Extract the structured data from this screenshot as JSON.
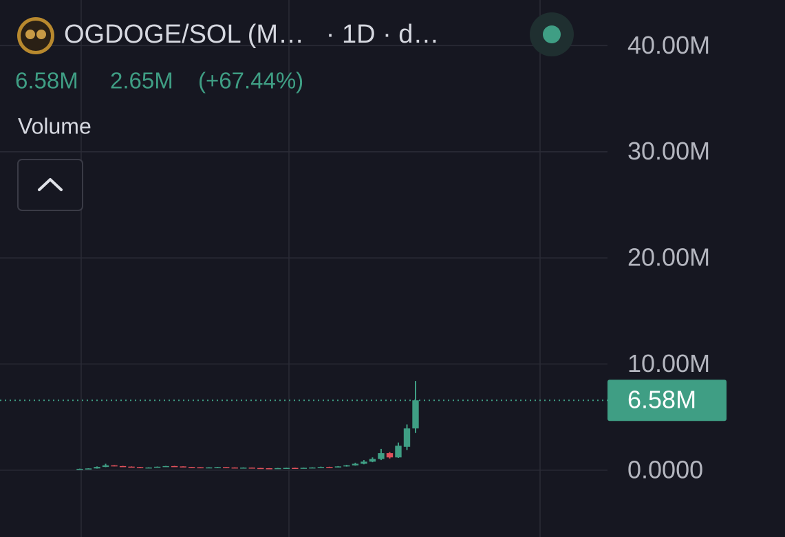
{
  "chart_data": {
    "type": "candlestick",
    "title": "OGDOGE/SOL (M…   · 1D · d…",
    "indicator": "Volume",
    "last_price": {
      "value": 6.58,
      "label": "6.58M"
    },
    "change": {
      "value": 2.65,
      "label": "2.65M"
    },
    "change_pct": {
      "value": 67.44,
      "label": "(+67.44%)"
    },
    "open": [
      0.08,
      0.12,
      0.16,
      0.3,
      0.45,
      0.38,
      0.33,
      0.28,
      0.22,
      0.25,
      0.32,
      0.38,
      0.35,
      0.3,
      0.27,
      0.24,
      0.26,
      0.28,
      0.25,
      0.22,
      0.24,
      0.2,
      0.18,
      0.16,
      0.19,
      0.21,
      0.2,
      0.22,
      0.25,
      0.3,
      0.27,
      0.35,
      0.45,
      0.6,
      0.8,
      1.05,
      1.6,
      1.2,
      2.2,
      3.93
    ],
    "high": [
      0.14,
      0.18,
      0.35,
      0.6,
      0.47,
      0.4,
      0.35,
      0.3,
      0.27,
      0.34,
      0.4,
      0.4,
      0.36,
      0.31,
      0.28,
      0.28,
      0.3,
      0.29,
      0.26,
      0.26,
      0.25,
      0.21,
      0.19,
      0.21,
      0.23,
      0.23,
      0.24,
      0.27,
      0.33,
      0.32,
      0.38,
      0.5,
      0.7,
      0.95,
      1.2,
      2.0,
      1.7,
      2.6,
      4.3,
      8.4
    ],
    "low": [
      0.06,
      0.1,
      0.14,
      0.28,
      0.36,
      0.31,
      0.26,
      0.2,
      0.2,
      0.23,
      0.3,
      0.33,
      0.28,
      0.25,
      0.22,
      0.22,
      0.24,
      0.23,
      0.2,
      0.2,
      0.18,
      0.16,
      0.14,
      0.15,
      0.17,
      0.18,
      0.18,
      0.2,
      0.23,
      0.25,
      0.25,
      0.33,
      0.42,
      0.55,
      0.75,
      0.95,
      1.1,
      1.15,
      1.9,
      3.5
    ],
    "close": [
      0.12,
      0.16,
      0.3,
      0.45,
      0.38,
      0.33,
      0.28,
      0.22,
      0.25,
      0.32,
      0.38,
      0.35,
      0.3,
      0.27,
      0.24,
      0.26,
      0.28,
      0.25,
      0.22,
      0.24,
      0.2,
      0.18,
      0.16,
      0.19,
      0.21,
      0.2,
      0.22,
      0.25,
      0.3,
      0.27,
      0.35,
      0.45,
      0.6,
      0.8,
      1.05,
      1.6,
      1.2,
      2.3,
      3.93,
      6.58
    ],
    "up_color": "#3f9e84",
    "down_color": "#e0515b",
    "ylim": [
      -6.3,
      44.3
    ],
    "yticks": [
      {
        "value": 0,
        "label": "0.0000"
      },
      {
        "value": 10,
        "label": "10.00M"
      },
      {
        "value": 20,
        "label": "20.00M"
      },
      {
        "value": 30,
        "label": "30.00M"
      },
      {
        "value": 40,
        "label": "40.00M"
      }
    ],
    "grid": true
  }
}
